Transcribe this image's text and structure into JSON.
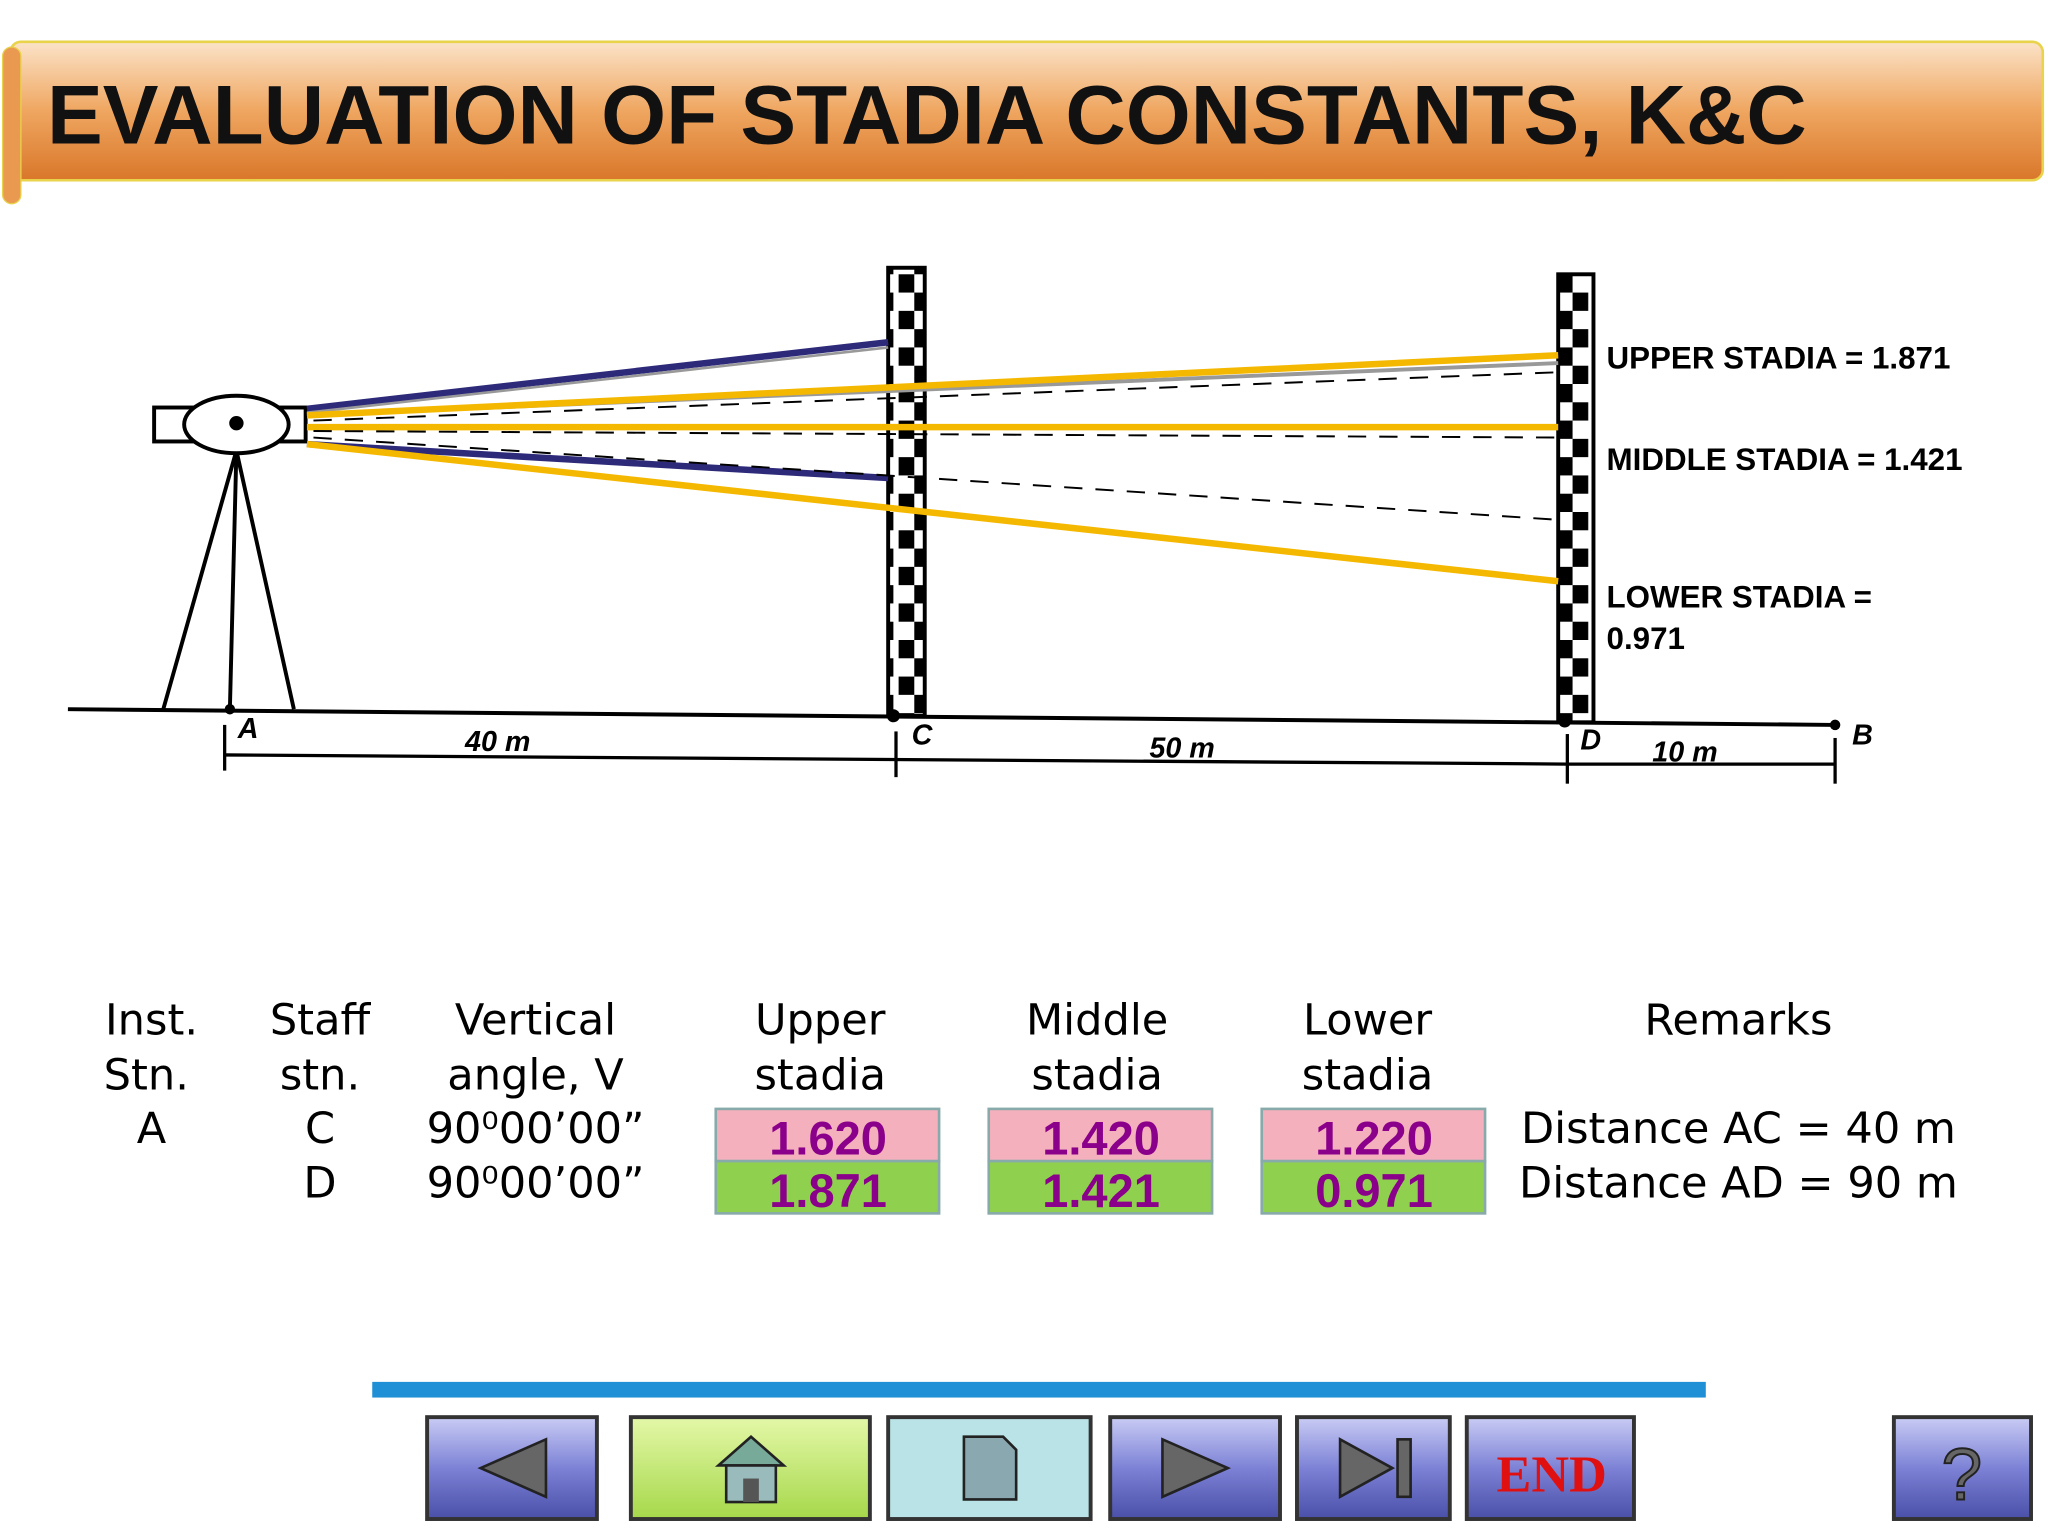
{
  "header": {
    "title": "EVALUATION OF STADIA CONSTANTS, K&C"
  },
  "diagram": {
    "labels": {
      "upper": "UPPER STADIA = 1.871",
      "middle": "MIDDLE STADIA = 1.421",
      "lower": [
        "LOWER STADIA =",
        "0.971"
      ]
    },
    "points": [
      "A",
      "C",
      "D",
      "B"
    ],
    "distances": [
      "40 m",
      "50 m",
      "10 m"
    ]
  },
  "table": {
    "headers": [
      [
        "Inst.",
        "Stn."
      ],
      [
        "Staff",
        "stn."
      ],
      [
        "Vertical",
        "angle, V"
      ],
      [
        "Upper",
        "stadia"
      ],
      [
        "Middle",
        "stadia"
      ],
      [
        "Lower",
        "stadia"
      ],
      [
        "Remarks"
      ]
    ],
    "rows": [
      {
        "inst": "A",
        "staff": "C",
        "angle": "90⁰00’00”",
        "upper": "1.620",
        "middle": "1.420",
        "lower": "1.220",
        "remarks": "Distance AC = 40 m"
      },
      {
        "staff": "D",
        "angle": "90⁰00’00”",
        "upper": "1.871",
        "middle": "1.421",
        "lower": "0.971",
        "remarks": "Distance AD = 90 m"
      }
    ]
  },
  "navigation": {
    "end": "END",
    "help": "?"
  }
}
